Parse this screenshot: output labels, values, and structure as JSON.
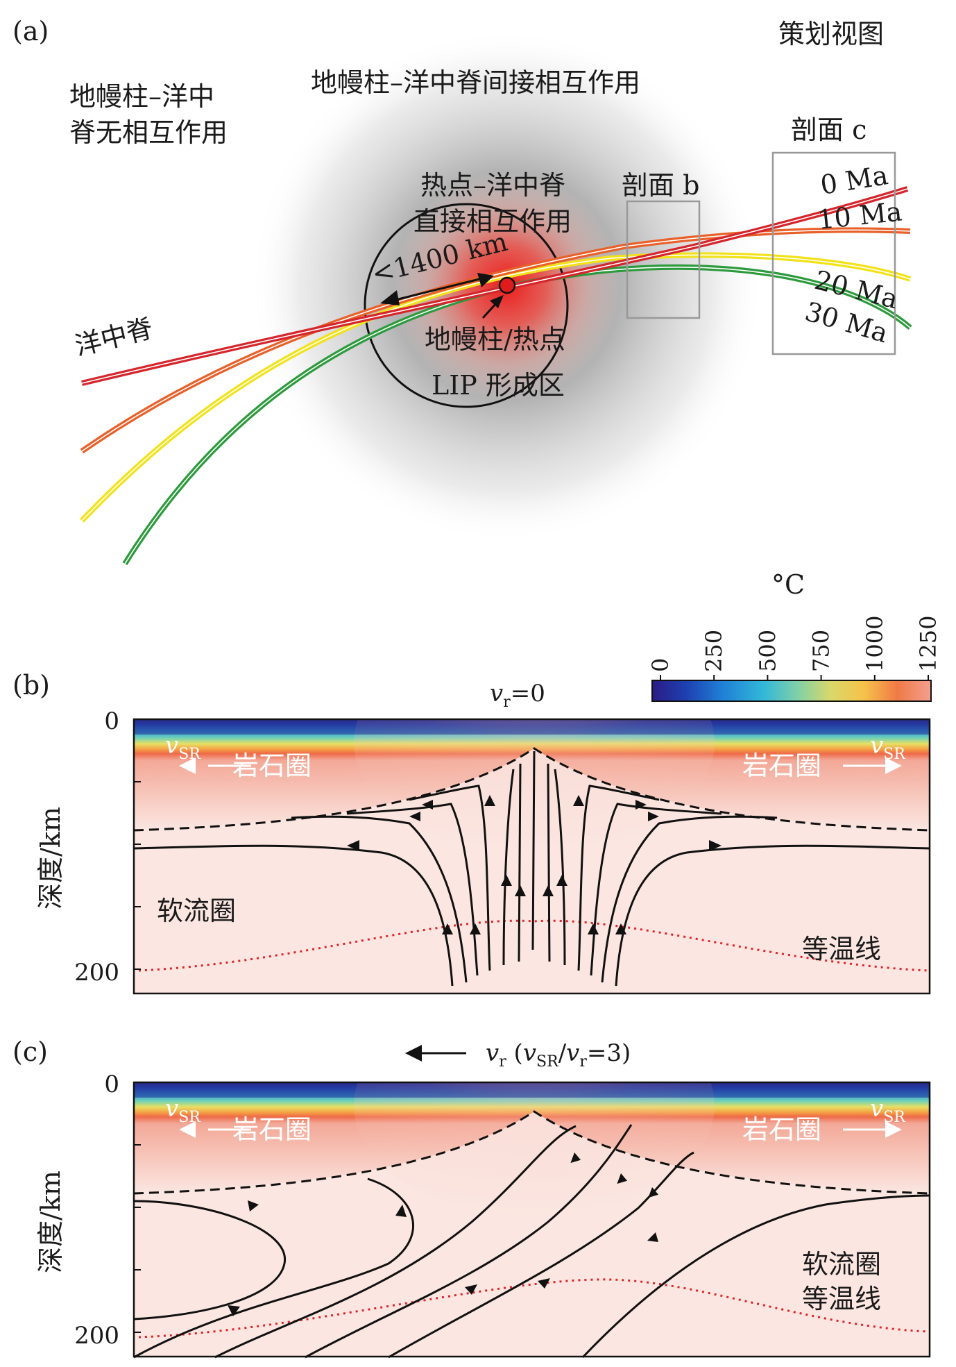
{
  "panel_a": {
    "label": "(a)",
    "plan_view": "策划视图",
    "no_interaction": [
      "地幔柱–洋中",
      "脊无相互作用"
    ],
    "indirect_interaction": "地幔柱–洋中脊间接相互作用",
    "direct_interaction": [
      "热点–洋中脊",
      "直接相互作用"
    ],
    "distance": "<1400 km",
    "plume": "地幔柱/热点",
    "lip": "LIP 形成区",
    "ridge": "洋中脊",
    "section_b": "剖面 b",
    "section_c": "剖面 c",
    "ages": [
      "0 Ma",
      "10 Ma",
      "20 Ma",
      "30 Ma"
    ],
    "age_colors": [
      "#d4262c",
      "#e8602a",
      "#f2e21b",
      "#3aa845"
    ]
  },
  "colorbar": {
    "unit": "°C",
    "ticks": [
      "0",
      "250",
      "500",
      "750",
      "1000",
      "1250"
    ]
  },
  "panel_b": {
    "label": "(b)",
    "vr": "v",
    "vr_sub": "r",
    "vr_eq": "=0",
    "vsr": "v",
    "vsr_sub": "SR",
    "lithosphere": "岩石圈",
    "asthenosphere": "软流圈",
    "isotherm": "等温线",
    "ylabel": "深度/km",
    "y_ticks": [
      "0",
      "200"
    ]
  },
  "panel_c": {
    "label": "(c)",
    "vr": "v",
    "vr_sub": "r",
    "ratio_open": " (",
    "ratio_vsr": "v",
    "ratio_vsr_sub": "SR",
    "ratio_slash": "/",
    "ratio_vr": "v",
    "ratio_vr_sub": "r",
    "ratio_close": "=3)",
    "vsr": "v",
    "vsr_sub": "SR",
    "lithosphere": "岩石圈",
    "asthenosphere": "软流圈",
    "isotherm": "等温线",
    "ylabel": "深度/km",
    "y_ticks": [
      "0",
      "200"
    ]
  }
}
